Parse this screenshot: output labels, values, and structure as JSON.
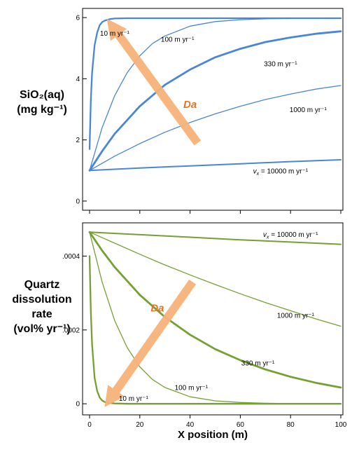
{
  "chart_data": [
    {
      "type": "line",
      "ylabel_lines": [
        "SiO₂(aq)",
        "(mg kg⁻¹)"
      ],
      "xlim": [
        0,
        100
      ],
      "ylim": [
        -0.3,
        6.3
      ],
      "yticks": [
        {
          "value": 0,
          "label": "0"
        },
        {
          "value": 2,
          "label": "2"
        },
        {
          "value": 4,
          "label": "4"
        },
        {
          "value": 6,
          "label": "6"
        }
      ],
      "xticks": [
        0,
        20,
        40,
        60,
        80,
        100
      ],
      "grid": false,
      "color": "#4a86d6",
      "series": [
        {
          "name": "10 m yr⁻¹",
          "x": [
            0,
            0.5,
            1,
            2,
            3,
            4,
            5,
            6,
            8,
            10,
            15,
            20,
            30,
            40,
            60,
            80,
            100
          ],
          "y": [
            1.7,
            3.3,
            4.2,
            5.1,
            5.5,
            5.75,
            5.85,
            5.9,
            5.95,
            5.97,
            5.98,
            5.98,
            5.98,
            5.98,
            5.98,
            5.98,
            5.98
          ]
        },
        {
          "name": "100 m yr⁻¹",
          "x": [
            0,
            5,
            10,
            15,
            20,
            25,
            30,
            40,
            50,
            60,
            70,
            80,
            90,
            100
          ],
          "y": [
            1.0,
            2.4,
            3.45,
            4.2,
            4.75,
            5.15,
            5.4,
            5.72,
            5.87,
            5.93,
            5.96,
            5.97,
            5.98,
            5.98
          ]
        },
        {
          "name": "330 m yr⁻¹",
          "x": [
            0,
            5,
            10,
            20,
            30,
            40,
            50,
            60,
            70,
            80,
            90,
            100
          ],
          "y": [
            1.0,
            1.63,
            2.2,
            3.1,
            3.8,
            4.3,
            4.7,
            4.98,
            5.2,
            5.35,
            5.47,
            5.55
          ]
        },
        {
          "name": "1000 m yr⁻¹",
          "x": [
            0,
            10,
            20,
            30,
            40,
            50,
            60,
            70,
            80,
            90,
            100
          ],
          "y": [
            1.0,
            1.47,
            1.88,
            2.25,
            2.57,
            2.85,
            3.1,
            3.32,
            3.5,
            3.66,
            3.78
          ]
        },
        {
          "name": "vₓ = 10000 m yr⁻¹",
          "x": [
            0,
            20,
            40,
            60,
            80,
            100
          ],
          "y": [
            1.0,
            1.08,
            1.15,
            1.22,
            1.29,
            1.35
          ]
        }
      ],
      "annotations": [
        {
          "text": "10 m yr⁻¹",
          "x": 10,
          "y": 5.5
        },
        {
          "text": "100 m yr⁻¹",
          "x": 35,
          "y": 5.3
        },
        {
          "text": "330 m yr⁻¹",
          "x": 76,
          "y": 4.5
        },
        {
          "text": "1000 m yr⁻¹",
          "x": 87,
          "y": 3.0
        },
        {
          "vx": "v",
          "sub": "x",
          "text": " = 10000 m yr⁻¹",
          "x": 76,
          "y": 1.0
        }
      ],
      "arrow_label": "Da",
      "arrow": {
        "from": [
          43,
          1.9
        ],
        "to": [
          11,
          5.5
        ],
        "label_at": [
          40,
          3.05
        ],
        "color": "#f7b37a"
      }
    },
    {
      "type": "line",
      "ylabel_lines": [
        "Quartz",
        "dissolution",
        "rate",
        "(vol% yr⁻¹)"
      ],
      "xlim": [
        0,
        100
      ],
      "ylim": [
        -3e-05,
        0.00049
      ],
      "yticks": [
        {
          "value": 0,
          "label": "0"
        },
        {
          "value": 0.0002,
          "label": ".0002"
        },
        {
          "value": 0.0004,
          "label": ".0004"
        }
      ],
      "xticks": [
        0,
        20,
        40,
        60,
        80,
        100
      ],
      "xlabel": "X position (m)",
      "grid": false,
      "color": "#76a033",
      "series": [
        {
          "name": "10 m yr⁻¹",
          "x": [
            0,
            0.5,
            1,
            2,
            3,
            4,
            5,
            6,
            8,
            10,
            15,
            20,
            40,
            60,
            100
          ],
          "y": [
            0.0004,
            0.00025,
            0.00016,
            7e-05,
            3.5e-05,
            1.7e-05,
            9e-06,
            5e-06,
            2e-06,
            1e-06,
            0,
            0,
            0,
            0,
            0
          ]
        },
        {
          "name": "100 m yr⁻¹",
          "x": [
            0,
            5,
            10,
            15,
            20,
            25,
            30,
            40,
            50,
            60,
            70,
            80,
            100
          ],
          "y": [
            0.000465,
            0.00033,
            0.000225,
            0.000152,
            0.0001,
            6.6e-05,
            4.4e-05,
            1.9e-05,
            8e-06,
            3.5e-06,
            1.5e-06,
            5e-07,
            0
          ]
        },
        {
          "name": "330 m yr⁻¹",
          "x": [
            0,
            5,
            10,
            20,
            30,
            40,
            50,
            60,
            70,
            80,
            90,
            100
          ],
          "y": [
            0.000465,
            0.000415,
            0.00037,
            0.000295,
            0.000235,
            0.000187,
            0.000148,
            0.000118,
            9.3e-05,
            7.3e-05,
            5.7e-05,
            4.4e-05
          ]
        },
        {
          "name": "1000 m yr⁻¹",
          "x": [
            0,
            10,
            20,
            30,
            40,
            50,
            60,
            70,
            80,
            90,
            100
          ],
          "y": [
            0.000465,
            0.000435,
            0.000405,
            0.000376,
            0.000349,
            0.000323,
            0.000298,
            0.000274,
            0.000252,
            0.00023,
            0.00021
          ]
        },
        {
          "name": "vₓ = 10000 m yr⁻¹",
          "x": [
            0,
            20,
            40,
            60,
            80,
            100
          ],
          "y": [
            0.000465,
            0.000458,
            0.000451,
            0.000444,
            0.000438,
            0.000432
          ]
        }
      ],
      "annotations": [
        {
          "vx": "v",
          "sub": "x",
          "text": " = 10000 m yr⁻¹",
          "x": 80,
          "y": 0.00046
        },
        {
          "text": "1000 m yr⁻¹",
          "x": 82,
          "y": 0.00024
        },
        {
          "text": "330 m yr⁻¹",
          "x": 67,
          "y": 0.000111
        },
        {
          "text": "100 m yr⁻¹",
          "x": 40.5,
          "y": 4.5e-05
        },
        {
          "text": "10 m yr⁻¹",
          "x": 17.5,
          "y": 1.6e-05
        }
      ],
      "arrow_label": "Da",
      "arrow": {
        "from": [
          41,
          0.00033
        ],
        "to": [
          10,
          3e-05
        ],
        "label_at": [
          27,
          0.00025
        ],
        "color": "#f7b37a"
      }
    }
  ]
}
